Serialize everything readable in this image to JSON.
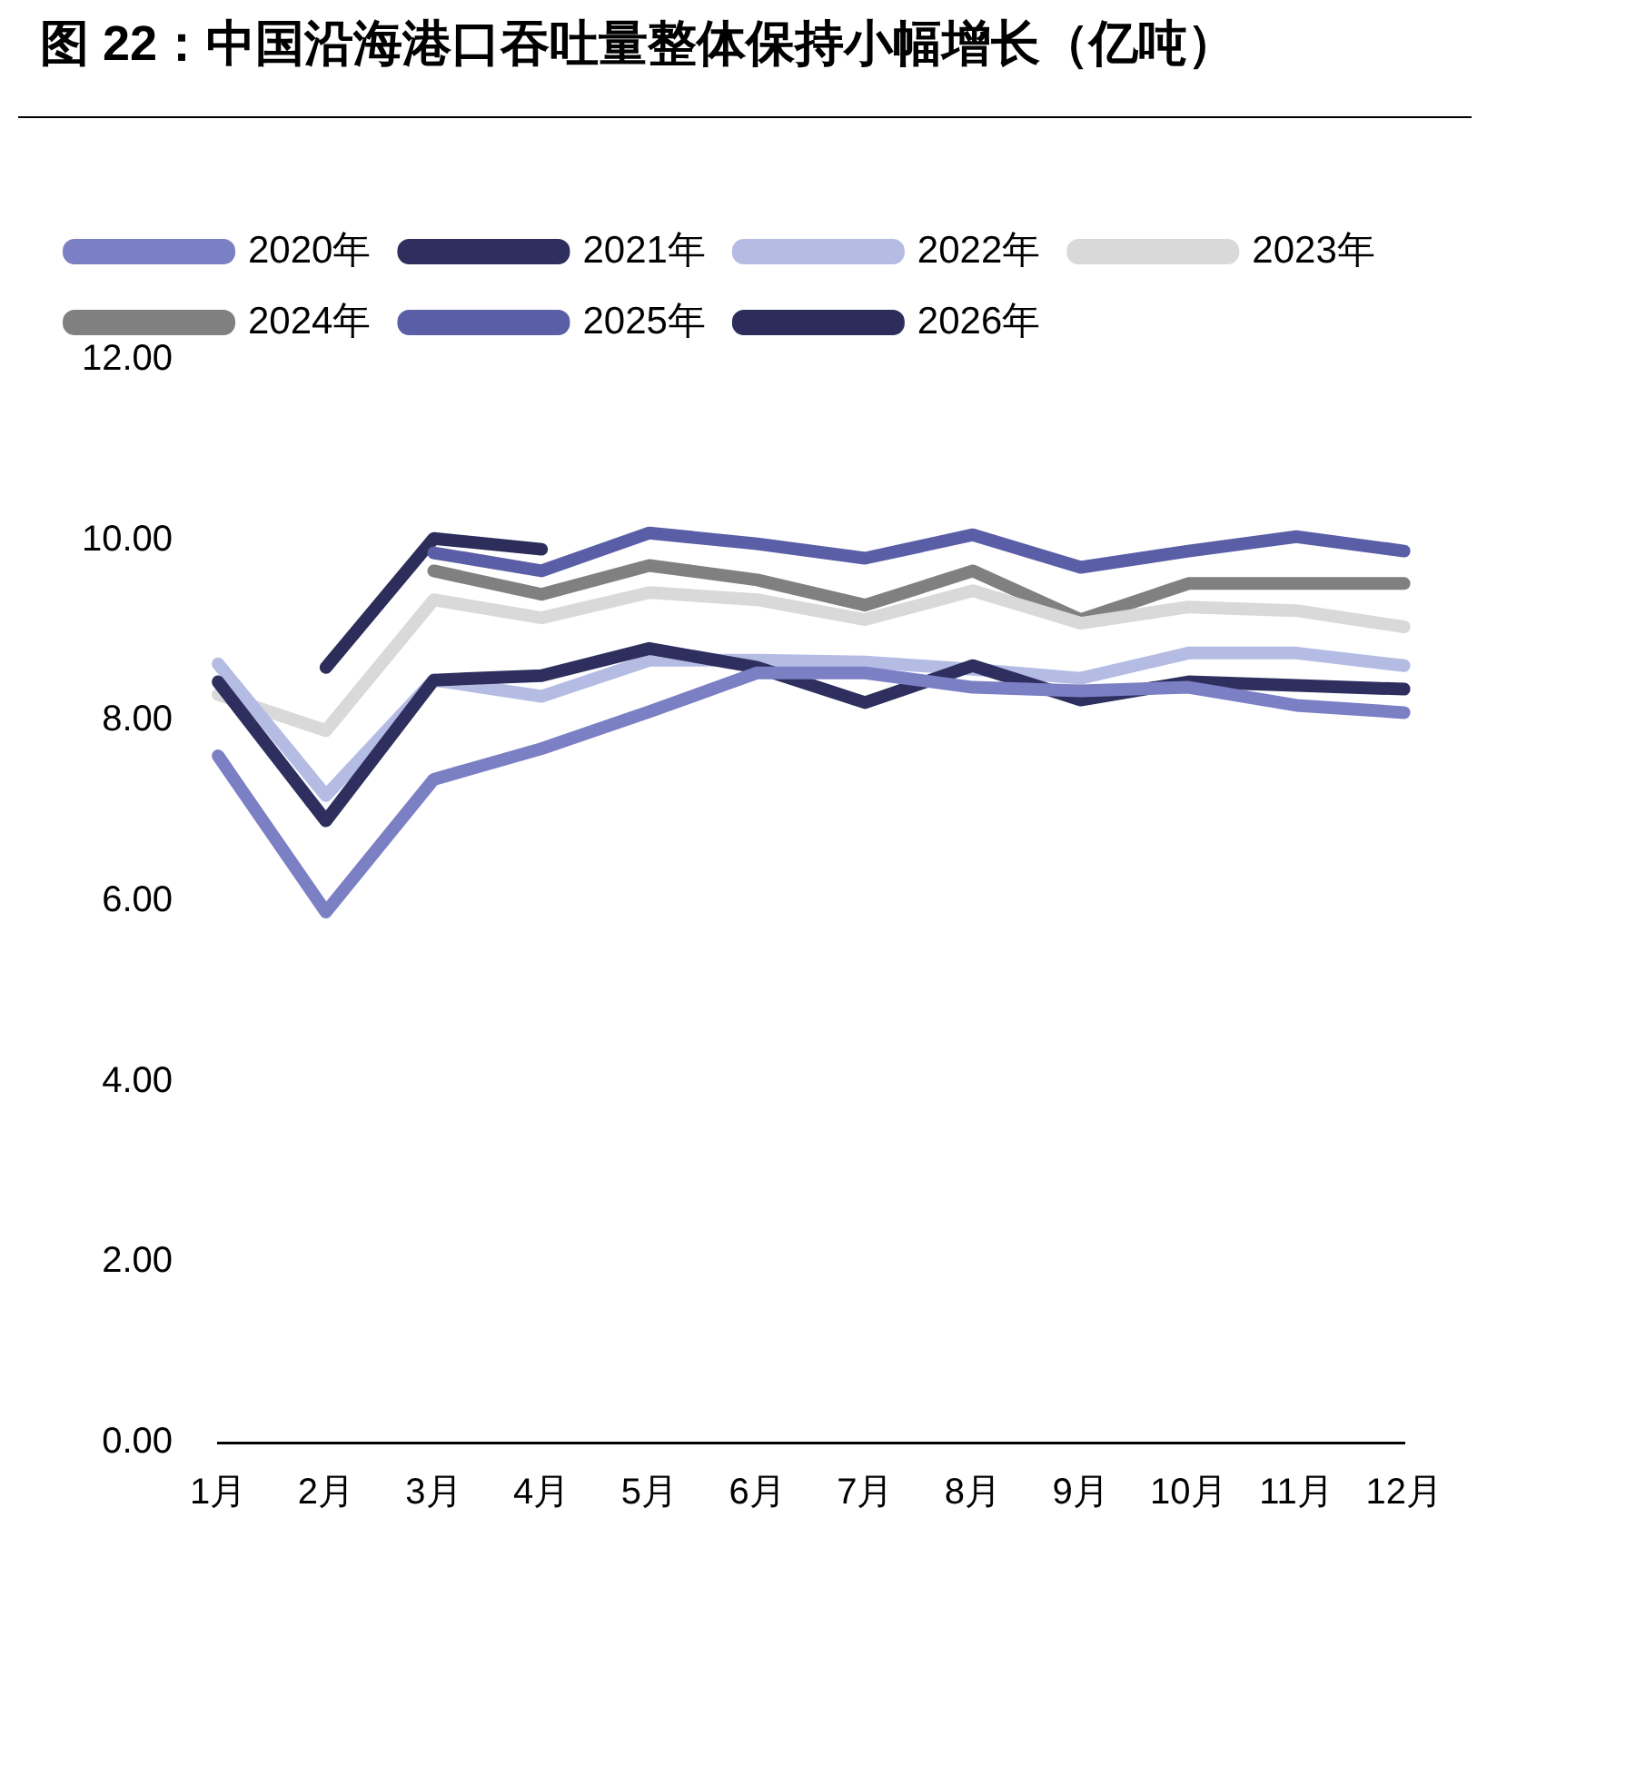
{
  "chart_data": {
    "type": "line",
    "title": "图 22：中国沿海港口吞吐量整体保持小幅增长（亿吨）",
    "categories": [
      "1月",
      "2月",
      "3月",
      "4月",
      "5月",
      "6月",
      "7月",
      "8月",
      "9月",
      "10月",
      "11月",
      "12月"
    ],
    "series": [
      {
        "name": "2020年",
        "color": "#7b7fc4",
        "values": [
          7.61,
          5.88,
          7.35,
          7.69,
          8.1,
          8.53,
          8.53,
          8.37,
          8.33,
          8.37,
          8.17,
          8.09
        ]
      },
      {
        "name": "2021年",
        "color": "#2e2f5e",
        "values": [
          8.43,
          6.89,
          8.45,
          8.5,
          8.8,
          8.59,
          8.2,
          8.61,
          8.23,
          8.43,
          8.39,
          8.35
        ]
      },
      {
        "name": "2022年",
        "color": "#b4bce4",
        "values": [
          8.63,
          7.17,
          8.45,
          8.27,
          8.67,
          8.67,
          8.65,
          8.57,
          8.47,
          8.75,
          8.75,
          8.61
        ]
      },
      {
        "name": "2023年",
        "color": "#d9d9d9",
        "values": [
          8.29,
          7.89,
          9.34,
          9.14,
          9.42,
          9.34,
          9.12,
          9.44,
          9.08,
          9.26,
          9.22,
          9.04
        ]
      },
      {
        "name": "2024年",
        "color": "#808080",
        "values": [
          null,
          null,
          9.66,
          9.4,
          9.72,
          9.56,
          9.28,
          9.66,
          9.12,
          9.52,
          9.52,
          9.52
        ]
      },
      {
        "name": "2025年",
        "color": "#5a5ea6",
        "values": [
          null,
          null,
          9.86,
          9.66,
          10.08,
          9.96,
          9.8,
          10.06,
          9.7,
          9.88,
          10.04,
          9.88
        ]
      },
      {
        "name": "2026年",
        "color": "#2c2d5a",
        "values": [
          null,
          8.59,
          10.02,
          9.9,
          null,
          null,
          null,
          null,
          null,
          null,
          null,
          null
        ]
      }
    ],
    "ylim": [
      0,
      12
    ],
    "yticks": [
      {
        "value": 0,
        "label": "0.00"
      },
      {
        "value": 2,
        "label": "2.00"
      },
      {
        "value": 4,
        "label": "4.00"
      },
      {
        "value": 6,
        "label": "6.00"
      },
      {
        "value": 8,
        "label": "8.00"
      },
      {
        "value": 10,
        "label": "10.00"
      },
      {
        "value": 12,
        "label": "12.00"
      }
    ],
    "grid": false,
    "legend": "top",
    "marker": "none",
    "line_style": "solid"
  }
}
